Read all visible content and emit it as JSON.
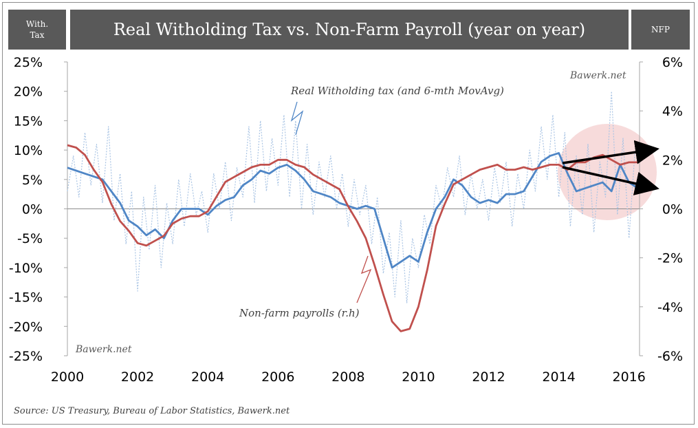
{
  "header": {
    "left_label": "With.\nTax",
    "title": "Real Witholding Tax vs. Non-Farm Payroll (year on year)",
    "right_label": "NFP"
  },
  "source": "Source: US Treasury, Bureau of Labor Statistics, Bawerk.net",
  "watermarks": [
    "Bawerk.net",
    "Bawerk.net"
  ],
  "colors": {
    "withholding_monthly": "#a9c4e4",
    "withholding_avg": "#4f86c6",
    "nfp": "#c0504d",
    "header_bg": "#595959",
    "highlight": "#f4cccc"
  },
  "chart_data": {
    "type": "line",
    "title": "Real Witholding Tax vs. Non-Farm Payroll (year on year)",
    "x_range": [
      2000,
      2016.3
    ],
    "x_ticks": [
      2000,
      2002,
      2004,
      2006,
      2008,
      2010,
      2012,
      2014,
      2016
    ],
    "y_left": {
      "label": "With. Tax",
      "range": [
        -25,
        25
      ],
      "ticks": [
        -25,
        -20,
        -15,
        -10,
        -5,
        0,
        5,
        10,
        15,
        20,
        25
      ],
      "unit": "%"
    },
    "y_right": {
      "label": "NFP",
      "range": [
        -6,
        6
      ],
      "ticks": [
        -6,
        -4,
        -2,
        0,
        2,
        4,
        6
      ],
      "unit": "%"
    },
    "annotations": [
      {
        "text": "Real Witholding tax (and 6-mth MovAvg)",
        "series": "withholding_avg"
      },
      {
        "text": "Non-farm payrolls (r.h)",
        "series": "nfp"
      }
    ],
    "series": [
      {
        "key": "withholding_avg",
        "name": "Real Witholding tax (and 6-mth MovAvg)",
        "axis": "left",
        "x": [
          2000.0,
          2000.25,
          2000.5,
          2000.75,
          2001.0,
          2001.25,
          2001.5,
          2001.75,
          2002.0,
          2002.25,
          2002.5,
          2002.75,
          2003.0,
          2003.25,
          2003.5,
          2003.75,
          2004.0,
          2004.25,
          2004.5,
          2004.75,
          2005.0,
          2005.25,
          2005.5,
          2005.75,
          2006.0,
          2006.25,
          2006.5,
          2006.75,
          2007.0,
          2007.25,
          2007.5,
          2007.75,
          2008.0,
          2008.25,
          2008.5,
          2008.75,
          2009.0,
          2009.25,
          2009.5,
          2009.75,
          2010.0,
          2010.25,
          2010.5,
          2010.75,
          2011.0,
          2011.25,
          2011.5,
          2011.75,
          2012.0,
          2012.25,
          2012.5,
          2012.75,
          2013.0,
          2013.25,
          2013.5,
          2013.75,
          2014.0,
          2014.25,
          2014.5,
          2014.75,
          2015.0,
          2015.25,
          2015.5,
          2015.75,
          2016.0,
          2016.25
        ],
        "y": [
          7.0,
          6.5,
          6.0,
          5.5,
          5.0,
          3.0,
          1.0,
          -2.0,
          -3.0,
          -4.5,
          -3.5,
          -5.0,
          -2.0,
          0.0,
          0.0,
          0.0,
          -1.0,
          0.5,
          1.5,
          2.0,
          4.0,
          5.0,
          6.5,
          6.0,
          7.0,
          7.5,
          6.5,
          5.0,
          3.0,
          2.5,
          2.0,
          1.0,
          0.5,
          0.0,
          0.5,
          0.0,
          -5.0,
          -10.0,
          -9.0,
          -8.0,
          -9.0,
          -4.0,
          0.0,
          2.0,
          5.0,
          4.0,
          2.0,
          1.0,
          1.5,
          1.0,
          2.5,
          2.5,
          3.0,
          5.5,
          8.0,
          9.0,
          9.5,
          6.0,
          3.0,
          3.5,
          4.0,
          4.5,
          3.0,
          7.5,
          4.5,
          3.5
        ]
      },
      {
        "key": "nfp",
        "name": "Non-farm payrolls (r.h)",
        "axis": "right",
        "x": [
          2000.0,
          2000.25,
          2000.5,
          2000.75,
          2001.0,
          2001.25,
          2001.5,
          2001.75,
          2002.0,
          2002.25,
          2002.5,
          2002.75,
          2003.0,
          2003.25,
          2003.5,
          2003.75,
          2004.0,
          2004.25,
          2004.5,
          2004.75,
          2005.0,
          2005.25,
          2005.5,
          2005.75,
          2006.0,
          2006.25,
          2006.5,
          2006.75,
          2007.0,
          2007.25,
          2007.5,
          2007.75,
          2008.0,
          2008.25,
          2008.5,
          2008.75,
          2009.0,
          2009.25,
          2009.5,
          2009.75,
          2010.0,
          2010.25,
          2010.5,
          2010.75,
          2011.0,
          2011.25,
          2011.5,
          2011.75,
          2012.0,
          2012.25,
          2012.5,
          2012.75,
          2013.0,
          2013.25,
          2013.5,
          2013.75,
          2014.0,
          2014.25,
          2014.5,
          2014.75,
          2015.0,
          2015.25,
          2015.5,
          2015.75,
          2016.0,
          2016.25
        ],
        "y": [
          2.6,
          2.5,
          2.2,
          1.6,
          1.1,
          0.2,
          -0.5,
          -0.9,
          -1.4,
          -1.5,
          -1.3,
          -1.1,
          -0.6,
          -0.4,
          -0.3,
          -0.3,
          -0.1,
          0.5,
          1.1,
          1.3,
          1.5,
          1.7,
          1.8,
          1.8,
          2.0,
          2.0,
          1.8,
          1.7,
          1.4,
          1.2,
          1.0,
          0.8,
          0.1,
          -0.5,
          -1.2,
          -2.3,
          -3.5,
          -4.6,
          -5.0,
          -4.9,
          -4.0,
          -2.5,
          -0.7,
          0.2,
          1.0,
          1.2,
          1.4,
          1.6,
          1.7,
          1.8,
          1.6,
          1.6,
          1.7,
          1.6,
          1.7,
          1.8,
          1.8,
          1.6,
          1.9,
          1.9,
          2.1,
          2.2,
          2.0,
          1.8,
          1.9,
          1.9
        ]
      },
      {
        "key": "withholding_monthly",
        "name": "",
        "axis": "left",
        "x": [
          2000.0,
          2000.17,
          2000.33,
          2000.5,
          2000.67,
          2000.83,
          2001.0,
          2001.17,
          2001.33,
          2001.5,
          2001.67,
          2001.83,
          2002.0,
          2002.17,
          2002.33,
          2002.5,
          2002.67,
          2002.83,
          2003.0,
          2003.17,
          2003.33,
          2003.5,
          2003.67,
          2003.83,
          2004.0,
          2004.17,
          2004.33,
          2004.5,
          2004.67,
          2004.83,
          2005.0,
          2005.17,
          2005.33,
          2005.5,
          2005.67,
          2005.83,
          2006.0,
          2006.17,
          2006.33,
          2006.5,
          2006.67,
          2006.83,
          2007.0,
          2007.17,
          2007.33,
          2007.5,
          2007.67,
          2007.83,
          2008.0,
          2008.17,
          2008.33,
          2008.5,
          2008.67,
          2008.83,
          2009.0,
          2009.17,
          2009.33,
          2009.5,
          2009.67,
          2009.83,
          2010.0,
          2010.17,
          2010.33,
          2010.5,
          2010.67,
          2010.83,
          2011.0,
          2011.17,
          2011.33,
          2011.5,
          2011.67,
          2011.83,
          2012.0,
          2012.17,
          2012.33,
          2012.5,
          2012.67,
          2012.83,
          2013.0,
          2013.17,
          2013.33,
          2013.5,
          2013.67,
          2013.83,
          2014.0,
          2014.17,
          2014.33,
          2014.5,
          2014.67,
          2014.83,
          2015.0,
          2015.17,
          2015.33,
          2015.5,
          2015.67,
          2015.83,
          2016.0,
          2016.17
        ],
        "y": [
          3,
          9,
          2,
          13,
          4,
          11,
          1,
          14,
          -2,
          6,
          -6,
          3,
          -14,
          2,
          -7,
          4,
          -10,
          1,
          -6,
          5,
          -3,
          6,
          -1,
          3,
          -4,
          6,
          0,
          8,
          -2,
          7,
          2,
          14,
          1,
          15,
          3,
          12,
          4,
          16,
          2,
          15,
          0,
          11,
          -1,
          8,
          2,
          9,
          0,
          6,
          -3,
          5,
          -1,
          4,
          -6,
          2,
          -11,
          -4,
          -15,
          -2,
          -16,
          -5,
          -10,
          -1,
          -6,
          4,
          0,
          7,
          2,
          9,
          -1,
          6,
          0,
          5,
          -2,
          7,
          1,
          8,
          -3,
          6,
          0,
          10,
          3,
          14,
          5,
          16,
          2,
          13,
          -3,
          9,
          -1,
          11,
          -4,
          8,
          2,
          20,
          -1,
          12,
          -5,
          10
        ]
      }
    ]
  }
}
